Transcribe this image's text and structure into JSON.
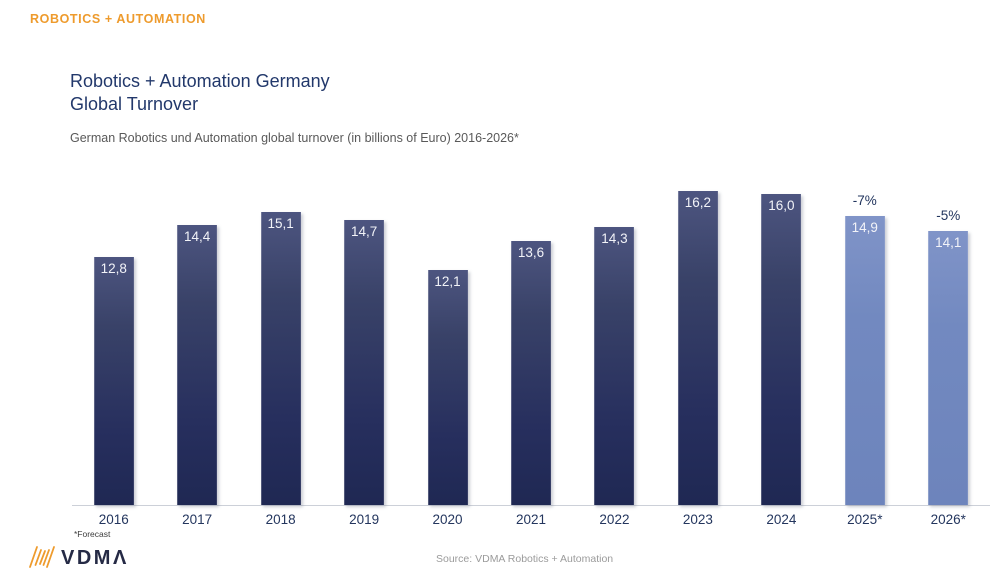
{
  "brand": {
    "label": "ROBOTICS + AUTOMATION",
    "color": "#EE9B2D"
  },
  "title": {
    "line1": "Robotics + Automation Germany",
    "line2": "Global Turnover"
  },
  "subtitle": "German Robotics und Automation global turnover (in billions of Euro) 2016-2026*",
  "chart_data": {
    "type": "bar",
    "title": "Robotics + Automation Germany Global Turnover",
    "unit": "billions of Euro",
    "categories": [
      "2016",
      "2017",
      "2018",
      "2019",
      "2020",
      "2021",
      "2022",
      "2023",
      "2024",
      "2025*",
      "2026*"
    ],
    "values": [
      12.8,
      14.4,
      15.1,
      14.7,
      12.1,
      13.6,
      14.3,
      16.2,
      16.0,
      14.9,
      14.1
    ],
    "forecast": [
      false,
      false,
      false,
      false,
      false,
      false,
      false,
      false,
      false,
      true,
      true
    ],
    "annotations": [
      {
        "category": "2025*",
        "label": "-7%"
      },
      {
        "category": "2026*",
        "label": "-5%"
      }
    ],
    "xlabel": "",
    "ylabel": "",
    "ylim": [
      0,
      17
    ],
    "grid": false,
    "legend": false,
    "decimal_separator": ",",
    "bar_color_actual": "#27315e",
    "bar_color_forecast": "#7289c0"
  },
  "footnote": "*Forecast",
  "footer": {
    "logo_text": "VDMΛ",
    "source": "Source: VDMA Robotics + Automation"
  }
}
